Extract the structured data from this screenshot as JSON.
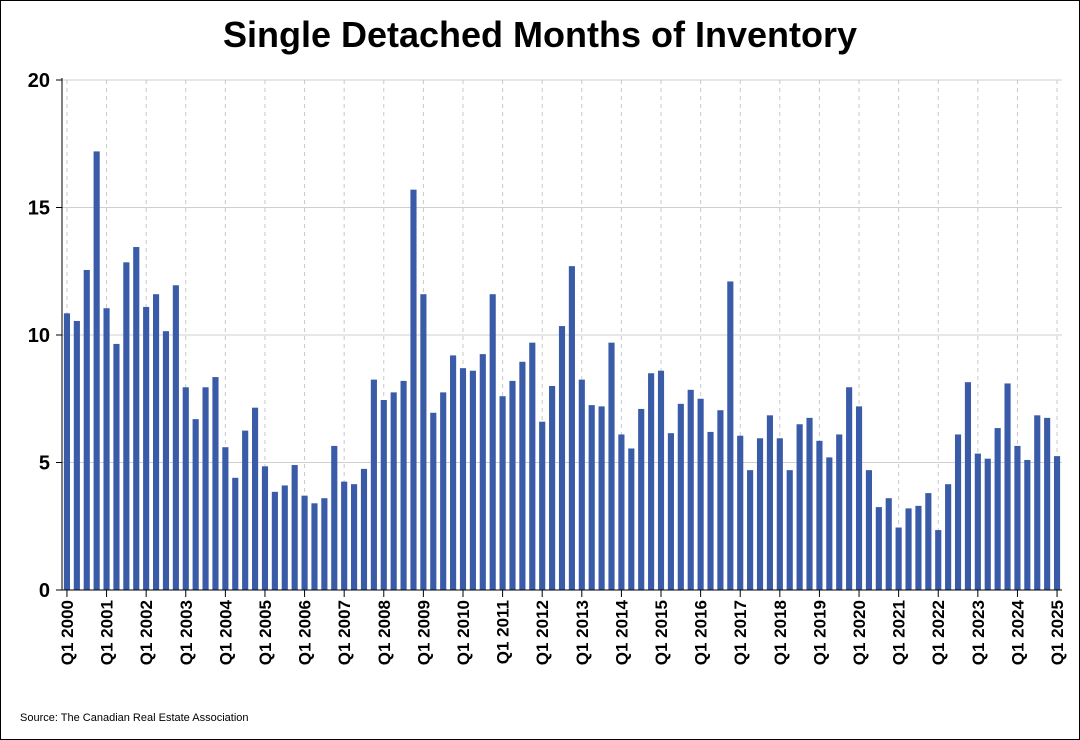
{
  "source": "Source: The Canadian Real Estate Association",
  "chart_data": {
    "type": "bar",
    "title": "Single Detached Months of Inventory",
    "xlabel": "",
    "ylabel": "",
    "ylim": [
      0,
      20
    ],
    "yticks": [
      0,
      5,
      10,
      15,
      20
    ],
    "grid": true,
    "bar_color": "#3a5ba8",
    "categories": [
      "Q1 2000",
      "Q2 2000",
      "Q3 2000",
      "Q4 2000",
      "Q1 2001",
      "Q2 2001",
      "Q3 2001",
      "Q4 2001",
      "Q1 2002",
      "Q2 2002",
      "Q3 2002",
      "Q4 2002",
      "Q1 2003",
      "Q2 2003",
      "Q3 2003",
      "Q4 2003",
      "Q1 2004",
      "Q2 2004",
      "Q3 2004",
      "Q4 2004",
      "Q1 2005",
      "Q2 2005",
      "Q3 2005",
      "Q4 2005",
      "Q1 2006",
      "Q2 2006",
      "Q3 2006",
      "Q4 2006",
      "Q1 2007",
      "Q2 2007",
      "Q3 2007",
      "Q4 2007",
      "Q1 2008",
      "Q2 2008",
      "Q3 2008",
      "Q4 2008",
      "Q1 2009",
      "Q2 2009",
      "Q3 2009",
      "Q4 2009",
      "Q1 2010",
      "Q2 2010",
      "Q3 2010",
      "Q4 2010",
      "Q1 2011",
      "Q2 2011",
      "Q3 2011",
      "Q4 2011",
      "Q1 2012",
      "Q2 2012",
      "Q3 2012",
      "Q4 2012",
      "Q1 2013",
      "Q2 2013",
      "Q3 2013",
      "Q4 2013",
      "Q1 2014",
      "Q2 2014",
      "Q3 2014",
      "Q4 2014",
      "Q1 2015",
      "Q2 2015",
      "Q3 2015",
      "Q4 2015",
      "Q1 2016",
      "Q2 2016",
      "Q3 2016",
      "Q4 2016",
      "Q1 2017",
      "Q2 2017",
      "Q3 2017",
      "Q4 2017",
      "Q1 2018",
      "Q2 2018",
      "Q3 2018",
      "Q4 2018",
      "Q1 2019",
      "Q2 2019",
      "Q3 2019",
      "Q4 2019",
      "Q1 2020",
      "Q2 2020",
      "Q3 2020",
      "Q4 2020",
      "Q1 2021",
      "Q2 2021",
      "Q3 2021",
      "Q4 2021",
      "Q1 2022",
      "Q2 2022",
      "Q3 2022",
      "Q4 2022",
      "Q1 2023",
      "Q2 2023",
      "Q3 2023",
      "Q4 2023",
      "Q1 2024",
      "Q2 2024",
      "Q3 2024",
      "Q4 2024",
      "Q1 2025"
    ],
    "xtick_labels": [
      "Q1 2000",
      "Q1 2001",
      "Q1 2002",
      "Q1 2003",
      "Q1 2004",
      "Q1 2005",
      "Q1 2006",
      "Q1 2007",
      "Q1 2008",
      "Q1 2009",
      "Q1 2010",
      "Q1 2011",
      "Q1 2012",
      "Q1 2013",
      "Q1 2014",
      "Q1 2015",
      "Q1 2016",
      "Q1 2017",
      "Q1 2018",
      "Q1 2019",
      "Q1 2020",
      "Q1 2021",
      "Q1 2022",
      "Q1 2023",
      "Q1 2024",
      "Q1 2025"
    ],
    "values": [
      10.85,
      10.55,
      12.55,
      17.2,
      11.05,
      9.65,
      12.85,
      13.45,
      11.1,
      11.6,
      10.15,
      11.95,
      7.95,
      6.7,
      7.95,
      8.35,
      5.6,
      4.4,
      6.25,
      7.15,
      4.85,
      3.85,
      4.1,
      4.9,
      3.7,
      3.4,
      3.6,
      5.65,
      4.25,
      4.15,
      4.75,
      8.25,
      7.45,
      7.75,
      8.2,
      15.7,
      11.6,
      6.95,
      7.75,
      9.2,
      8.7,
      8.6,
      9.25,
      11.6,
      7.6,
      8.2,
      8.95,
      9.7,
      6.6,
      8.0,
      10.35,
      12.7,
      8.25,
      7.25,
      7.2,
      9.7,
      6.1,
      5.55,
      7.1,
      8.5,
      8.6,
      6.15,
      7.3,
      7.85,
      7.5,
      6.2,
      7.05,
      12.1,
      6.05,
      4.7,
      5.95,
      6.85,
      5.95,
      4.7,
      6.5,
      6.75,
      5.85,
      5.2,
      6.1,
      7.95,
      7.2,
      4.7,
      3.25,
      3.6,
      2.45,
      3.2,
      3.3,
      3.8,
      2.35,
      4.15,
      6.1,
      8.15,
      5.35,
      5.15,
      6.35,
      8.1,
      5.65,
      5.1,
      6.85,
      6.75,
      5.25
    ]
  }
}
